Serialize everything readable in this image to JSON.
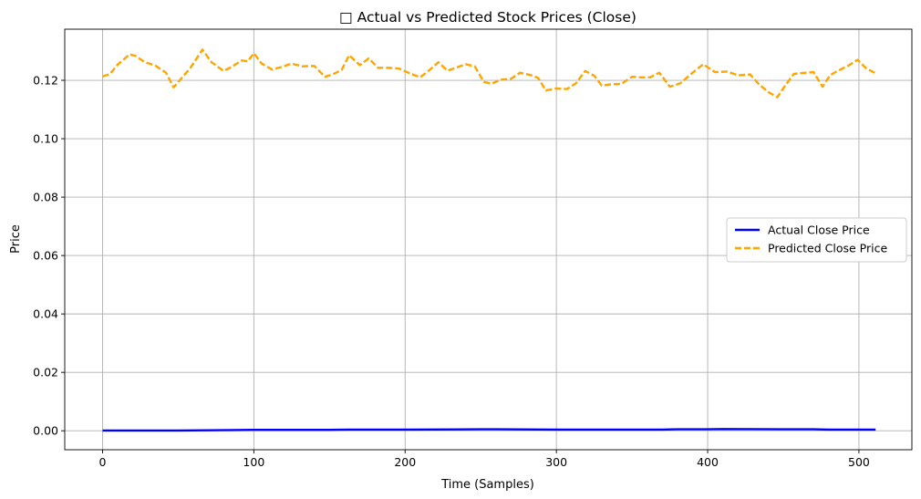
{
  "chart_data": {
    "type": "line",
    "title": "□ Actual vs Predicted Stock Prices (Close)",
    "xlabel": "Time (Samples)",
    "ylabel": "Price",
    "xlim": [
      -25,
      535
    ],
    "ylim": [
      -0.0065,
      0.1375
    ],
    "x_ticks": [
      0,
      100,
      200,
      300,
      400,
      500
    ],
    "y_ticks": [
      0.0,
      0.02,
      0.04,
      0.06,
      0.08,
      0.1,
      0.12
    ],
    "x_tick_labels": [
      "0",
      "100",
      "200",
      "300",
      "400",
      "500"
    ],
    "y_tick_labels": [
      "0.00",
      "0.02",
      "0.04",
      "0.06",
      "0.08",
      "0.10",
      "0.12"
    ],
    "grid": true,
    "legend_position": "center-right",
    "series": [
      {
        "name": "Actual Close Price",
        "color": "#0000ff",
        "style": "solid",
        "x": [
          0,
          50,
          100,
          150,
          165,
          200,
          250,
          260,
          300,
          350,
          370,
          380,
          400,
          410,
          450,
          470,
          480,
          500,
          511
        ],
        "values": [
          0.0001,
          0.0001,
          0.0003,
          0.0003,
          0.0004,
          0.0004,
          0.0005,
          0.0005,
          0.0004,
          0.0004,
          0.0004,
          0.0005,
          0.0005,
          0.0006,
          0.0005,
          0.0005,
          0.0004,
          0.0004,
          0.0004
        ]
      },
      {
        "name": "Predicted Close Price",
        "color": "#ffa500",
        "style": "dashed",
        "x": [
          0,
          5,
          10,
          18,
          22,
          28,
          35,
          42,
          47,
          53,
          58,
          66,
          72,
          80,
          85,
          92,
          96,
          100,
          105,
          112,
          118,
          125,
          132,
          140,
          147,
          152,
          158,
          163,
          170,
          176,
          182,
          189,
          196,
          203,
          210,
          215,
          222,
          228,
          233,
          240,
          246,
          252,
          257,
          263,
          270,
          276,
          283,
          288,
          293,
          300,
          307,
          313,
          319,
          325,
          330,
          336,
          343,
          350,
          356,
          362,
          368,
          375,
          382,
          390,
          397,
          405,
          413,
          420,
          428,
          434,
          440,
          446,
          451,
          457,
          463,
          470,
          476,
          481,
          487,
          493,
          499,
          505,
          511
        ],
        "values": [
          0.1213,
          0.1222,
          0.1254,
          0.1289,
          0.1283,
          0.1262,
          0.125,
          0.1226,
          0.1176,
          0.1212,
          0.1242,
          0.1305,
          0.1262,
          0.1232,
          0.1245,
          0.1268,
          0.1265,
          0.1293,
          0.1258,
          0.1237,
          0.1245,
          0.1257,
          0.1248,
          0.1249,
          0.1212,
          0.122,
          0.1235,
          0.1286,
          0.1252,
          0.1275,
          0.1243,
          0.1243,
          0.124,
          0.1224,
          0.121,
          0.123,
          0.1262,
          0.1233,
          0.1242,
          0.1255,
          0.1248,
          0.1195,
          0.1188,
          0.1202,
          0.1205,
          0.1226,
          0.1218,
          0.1208,
          0.1165,
          0.1172,
          0.117,
          0.119,
          0.1232,
          0.1216,
          0.1182,
          0.1186,
          0.1188,
          0.1212,
          0.121,
          0.121,
          0.1226,
          0.1178,
          0.119,
          0.1226,
          0.1255,
          0.1228,
          0.123,
          0.1217,
          0.122,
          0.1186,
          0.116,
          0.1142,
          0.118,
          0.1222,
          0.1225,
          0.1228,
          0.1178,
          0.1218,
          0.1235,
          0.125,
          0.127,
          0.124,
          0.1224
        ]
      }
    ]
  }
}
